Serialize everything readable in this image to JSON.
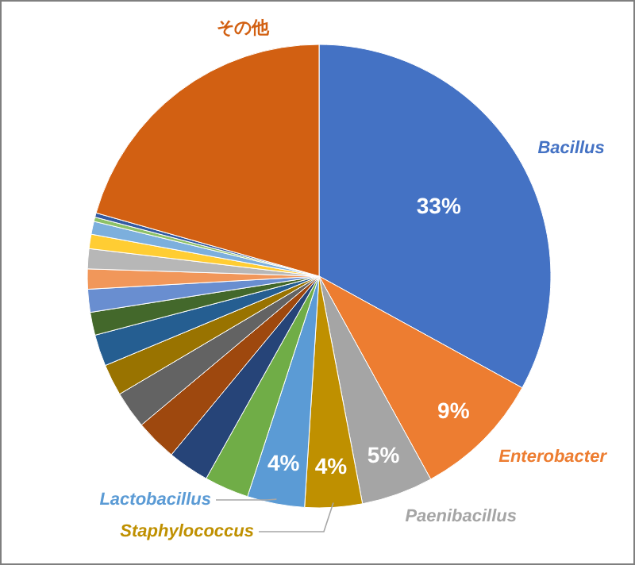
{
  "chart_data": {
    "type": "pie",
    "categories": [
      "Bacillus",
      "Enterobacter",
      "Paenibacillus",
      "Staphylococcus",
      "Lactobacillus",
      null,
      null,
      null,
      null,
      null,
      null,
      null,
      null,
      null,
      null,
      null,
      null,
      null,
      null,
      "その他"
    ],
    "values": [
      33,
      9,
      5,
      4,
      4,
      3.1,
      2.9,
      2.9,
      2.6,
      2.2,
      2.2,
      1.6,
      1.6,
      1.4,
      1.4,
      1.0,
      0.9,
      0.3,
      0.3,
      20.6
    ],
    "colors": [
      "#4472c4",
      "#ed7d31",
      "#a5a5a5",
      "#bf9000",
      "#5b9bd5",
      "#70ad47",
      "#264478",
      "#9e480e",
      "#636363",
      "#997300",
      "#255e91",
      "#43682b",
      "#698ed0",
      "#f1975a",
      "#b7b7b7",
      "#ffcd33",
      "#7cafdd",
      "#8cc168",
      "#335aa1",
      "#d26012"
    ],
    "value_labels": [
      "33%",
      "9%",
      "5%",
      "4%",
      "4%",
      null,
      null,
      null,
      null,
      null,
      null,
      null,
      null,
      null,
      null,
      null,
      null,
      null,
      null,
      null
    ]
  }
}
